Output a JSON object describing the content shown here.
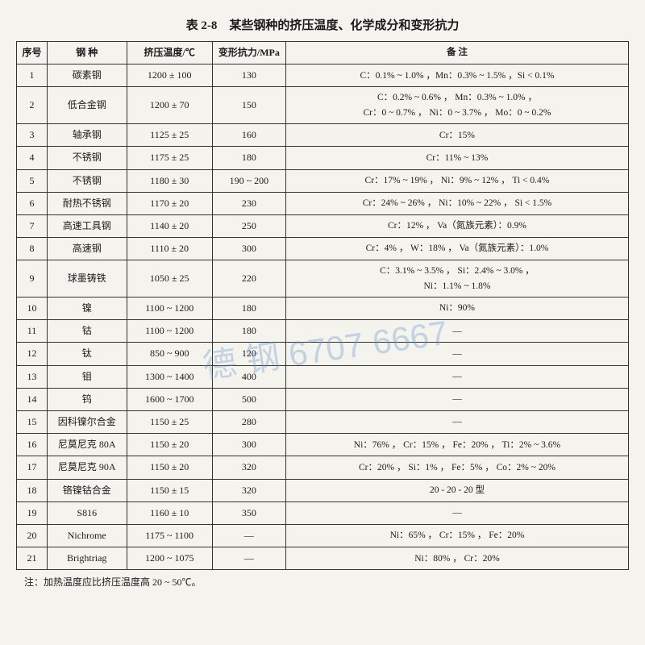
{
  "title": "表 2-8　某些钢种的挤压温度、化学成分和变形抗力",
  "table": {
    "columns": [
      "序号",
      "钢 种",
      "挤压温度/℃",
      "变形抗力/MPa",
      "备 注"
    ],
    "rows": [
      [
        "1",
        "碳素钢",
        "1200 ± 100",
        "130",
        "C：0.1% ~ 1.0% ，Mn：0.3% ~ 1.5% ，Si < 0.1%"
      ],
      [
        "2",
        "低合金钢",
        "1200 ± 70",
        "150",
        "C：0.2% ~ 0.6% ， Mn：0.3% ~ 1.0% ，\nCr：0 ~ 0.7% ， Ni：0 ~ 3.7% ， Mo：0 ~ 0.2%"
      ],
      [
        "3",
        "轴承钢",
        "1125 ± 25",
        "160",
        "Cr：15%"
      ],
      [
        "4",
        "不锈钢",
        "1175 ± 25",
        "180",
        "Cr：11% ~ 13%"
      ],
      [
        "5",
        "不锈钢",
        "1180 ± 30",
        "190 ~ 200",
        "Cr：17% ~ 19% ， Ni：9% ~ 12% ， Ti < 0.4%"
      ],
      [
        "6",
        "耐热不锈钢",
        "1170 ± 20",
        "230",
        "Cr：24% ~ 26% ， Ni：10% ~ 22% ， Si < 1.5%"
      ],
      [
        "7",
        "高速工具钢",
        "1140 ± 20",
        "250",
        "Cr：12% ， Va（氮族元素）：0.9%"
      ],
      [
        "8",
        "高速钢",
        "1110 ± 20",
        "300",
        "Cr：4% ， W：18% ， Va（氮族元素）：1.0%"
      ],
      [
        "9",
        "球墨铸铁",
        "1050 ± 25",
        "220",
        "C：3.1% ~ 3.5% ， Si：2.4% ~ 3.0% ，\nNi：1.1% ~ 1.8%"
      ],
      [
        "10",
        "镍",
        "1100 ~ 1200",
        "180",
        "Ni：90%"
      ],
      [
        "11",
        "钴",
        "1100 ~ 1200",
        "180",
        "—"
      ],
      [
        "12",
        "钛",
        "850 ~ 900",
        "120",
        "—"
      ],
      [
        "13",
        "钼",
        "1300 ~ 1400",
        "400",
        "—"
      ],
      [
        "14",
        "钨",
        "1600 ~ 1700",
        "500",
        "—"
      ],
      [
        "15",
        "因科镍尔合金",
        "1150 ± 25",
        "280",
        "—"
      ],
      [
        "16",
        "尼莫尼克 80A",
        "1150 ± 20",
        "300",
        "Ni：76% ， Cr：15% ， Fe：20% ， Ti：2% ~ 3.6%"
      ],
      [
        "17",
        "尼莫尼克 90A",
        "1150 ± 20",
        "320",
        "Cr：20% ， Si：1% ， Fe：5% ， Co：2% ~ 20%"
      ],
      [
        "18",
        "铬镍钴合金",
        "1150 ± 15",
        "320",
        "20 - 20 - 20 型"
      ],
      [
        "19",
        "S816",
        "1160 ± 10",
        "350",
        "—"
      ],
      [
        "20",
        "Nichrome",
        "1175 ~ 1100",
        "—",
        "Ni：65% ， Cr：15% ， Fe：20%"
      ],
      [
        "21",
        "Brightriag",
        "1200 ~ 1075",
        "—",
        "Ni：80% ， Cr：20%"
      ]
    ],
    "column_widths": [
      "5%",
      "13%",
      "14%",
      "12%",
      "56%"
    ],
    "border_color": "#333333",
    "background_color": "#f5f3ee",
    "font_size": 12,
    "header_font_weight": "bold"
  },
  "footnote": "注：加热温度应比挤压温度高 20 ~ 50℃。",
  "watermark": "德 钢  6707 6667"
}
